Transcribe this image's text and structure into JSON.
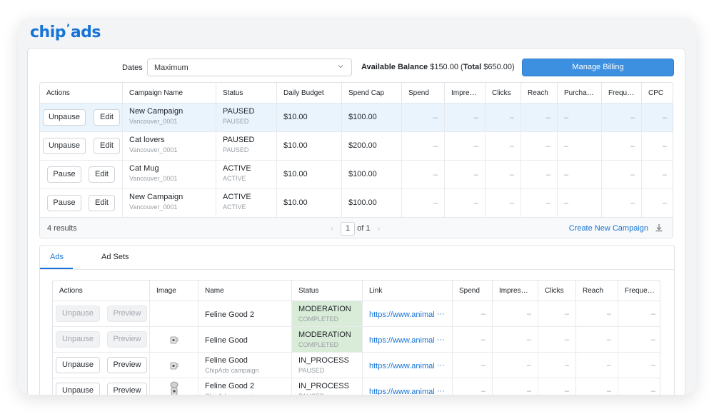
{
  "logo": "chip’ads",
  "toolbar": {
    "dates_label": "Dates",
    "dates_value": "Maximum",
    "balance_label": "Available Balance",
    "balance_value": "$150.00",
    "total_label": "Total",
    "total_value": "$650.00",
    "billing_button": "Manage Billing"
  },
  "campaigns": {
    "headers": [
      "Actions",
      "Campaign Name",
      "Status",
      "Daily Budget",
      "Spend Cap",
      "Spend",
      "Impress…",
      "Clicks",
      "Reach",
      "Purchases",
      "Freque…",
      "CPC"
    ],
    "rows": [
      {
        "action": "Unpause",
        "edit": "Edit",
        "name": "New Campaign",
        "account": "Vancouver_0001",
        "status": "PAUSED",
        "status_sub": "PAUSED",
        "daily_budget": "$10.00",
        "spend_cap": "$100.00"
      },
      {
        "action": "Unpause",
        "edit": "Edit",
        "name": "Cat lovers",
        "account": "Vancouver_0001",
        "status": "PAUSED",
        "status_sub": "PAUSED",
        "daily_budget": "$10.00",
        "spend_cap": "$200.00"
      },
      {
        "action": "Pause",
        "edit": "Edit",
        "name": "Cat Mug",
        "account": "Vancouver_0001",
        "status": "ACTIVE",
        "status_sub": "ACTIVE",
        "daily_budget": "$10.00",
        "spend_cap": "$100.00"
      },
      {
        "action": "Pause",
        "edit": "Edit",
        "name": "New Campaign",
        "account": "Vancouver_0001",
        "status": "ACTIVE",
        "status_sub": "ACTIVE",
        "daily_budget": "$10.00",
        "spend_cap": "$100.00"
      }
    ],
    "empty_value": "–",
    "results": "4 results",
    "page": "1",
    "page_of": "of 1",
    "create_link": "Create New Campaign"
  },
  "tabs": [
    "Ads",
    "Ad Sets"
  ],
  "ads": {
    "headers": [
      "Actions",
      "Image",
      "Name",
      "Status",
      "Link",
      "Spend",
      "Impressi…",
      "Clicks",
      "Reach",
      "Frequen…"
    ],
    "rows": [
      {
        "action": "Unpause",
        "preview": "Preview",
        "disabled": true,
        "image": "",
        "name": "Feline Good 2",
        "name_sub": "",
        "status": "MODERATION",
        "status_sub": "COMPLETED",
        "link": "https://www.animal"
      },
      {
        "action": "Unpause",
        "preview": "Preview",
        "disabled": true,
        "image": "mug",
        "name": "Feline Good",
        "name_sub": "",
        "status": "MODERATION",
        "status_sub": "COMPLETED",
        "link": "https://www.animal"
      },
      {
        "action": "Unpause",
        "preview": "Preview",
        "disabled": false,
        "image": "mug",
        "name": "Feline Good",
        "name_sub": "ChipAds campaign",
        "status": "IN_PROCESS",
        "status_sub": "PAUSED",
        "link": "https://www.animal"
      },
      {
        "action": "Unpause",
        "preview": "Preview",
        "disabled": false,
        "image": "figure",
        "name": "Feline Good 2",
        "name_sub": "ChipAds campaign",
        "status": "IN_PROCESS",
        "status_sub": "PAUSED",
        "link": "https://www.animal"
      }
    ],
    "more_icon": "···"
  }
}
